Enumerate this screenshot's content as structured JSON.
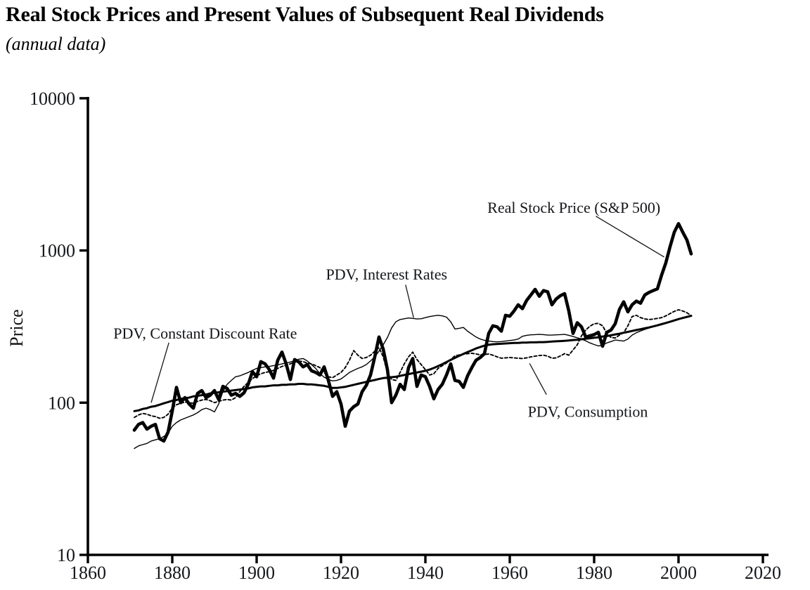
{
  "figure": {
    "title": "Real Stock Prices and Present Values of Subsequent Real Dividends",
    "subtitle": "(annual data)"
  },
  "chart_data": {
    "type": "line",
    "title": "Real Stock Prices and Present Values of Subsequent Real Dividends",
    "subtitle": "(annual data)",
    "xlabel": "",
    "ylabel": "Price",
    "y_scale": "log",
    "xlim": [
      1860,
      2020
    ],
    "ylim": [
      10,
      10000
    ],
    "x_ticks": [
      1860,
      1880,
      1900,
      1920,
      1940,
      1960,
      1980,
      2000,
      2020
    ],
    "y_ticks": [
      10,
      100,
      1000,
      10000
    ],
    "grid": false,
    "legend": "inline-annotations",
    "x_start_year": 1871,
    "series": [
      {
        "name": "Real Stock Price (S&P 500)",
        "values": [
          66,
          72,
          74,
          67,
          70,
          72,
          58,
          56,
          64,
          88,
          126,
          100,
          108,
          98,
          92,
          115,
          120,
          108,
          112,
          120,
          105,
          128,
          124,
          112,
          115,
          110,
          116,
          132,
          160,
          148,
          186,
          180,
          165,
          145,
          190,
          215,
          180,
          142,
          192,
          185,
          172,
          178,
          162,
          158,
          152,
          172,
          140,
          110,
          118,
          98,
          70,
          88,
          94,
          98,
          118,
          130,
          152,
          200,
          270,
          225,
          165,
          100,
          112,
          132,
          122,
          170,
          195,
          128,
          152,
          148,
          128,
          106,
          122,
          132,
          152,
          180,
          140,
          138,
          126,
          150,
          170,
          190,
          198,
          210,
          285,
          320,
          315,
          295,
          375,
          370,
          400,
          440,
          415,
          470,
          510,
          555,
          500,
          545,
          535,
          440,
          480,
          505,
          520,
          400,
          285,
          335,
          315,
          270,
          275,
          280,
          290,
          235,
          290,
          300,
          330,
          410,
          460,
          395,
          440,
          465,
          450,
          510,
          530,
          545,
          560,
          690,
          830,
          1060,
          1320,
          1500,
          1320,
          1170,
          950
        ]
      },
      {
        "name": "PDV, Constant Discount Rate",
        "values": [
          88,
          89,
          91,
          92,
          94,
          95,
          97,
          99,
          101,
          103,
          104,
          106,
          107,
          108,
          110,
          111,
          112,
          113,
          115,
          116,
          117,
          118,
          119,
          120,
          121,
          122,
          123,
          124,
          126,
          127,
          128,
          128,
          129,
          130,
          130,
          131,
          131,
          132,
          132,
          133,
          133,
          132,
          132,
          131,
          130,
          129,
          127,
          125,
          125,
          126,
          127,
          129,
          131,
          133,
          135,
          137,
          139,
          141,
          143,
          145,
          146,
          147,
          148,
          150,
          152,
          154,
          156,
          158,
          160,
          162,
          165,
          169,
          174,
          179,
          185,
          191,
          197,
          203,
          209,
          215,
          221,
          227,
          232,
          237,
          240,
          242,
          243,
          244,
          245,
          246,
          247,
          247,
          248,
          248,
          249,
          249,
          250,
          250,
          251,
          252,
          253,
          254,
          255,
          256,
          258,
          259,
          261,
          263,
          265,
          267,
          269,
          272,
          274,
          277,
          281,
          284,
          288,
          292,
          296,
          300,
          304,
          308,
          312,
          317,
          322,
          328,
          334,
          340,
          347,
          354,
          360,
          366,
          372
        ]
      },
      {
        "name": "PDV, Interest Rates",
        "values": [
          50,
          52,
          53,
          54,
          56,
          57,
          58,
          60,
          63,
          70,
          74,
          77,
          79,
          81,
          83,
          86,
          90,
          92,
          90,
          87,
          98,
          118,
          132,
          140,
          148,
          150,
          154,
          158,
          163,
          168,
          170,
          172,
          173,
          175,
          177,
          180,
          182,
          185,
          189,
          193,
          195,
          188,
          178,
          168,
          155,
          147,
          142,
          139,
          140,
          143,
          150,
          158,
          163,
          168,
          172,
          178,
          188,
          200,
          218,
          240,
          268,
          310,
          340,
          352,
          356,
          360,
          358,
          355,
          356,
          362,
          368,
          372,
          375,
          372,
          365,
          340,
          305,
          308,
          312,
          295,
          282,
          270,
          262,
          257,
          254,
          252,
          251,
          252,
          254,
          256,
          258,
          262,
          273,
          277,
          279,
          280,
          281,
          280,
          278,
          278,
          279,
          280,
          281,
          277,
          272,
          267,
          262,
          255,
          247,
          241,
          236,
          238,
          247,
          252,
          258,
          256,
          254,
          262,
          278,
          288,
          296,
          303,
          309,
          315,
          320,
          326,
          332,
          339,
          346,
          353,
          360,
          368,
          376
        ]
      },
      {
        "name": "PDV, Consumption",
        "values": [
          80,
          83,
          85,
          84,
          82,
          81,
          79,
          80,
          84,
          92,
          97,
          99,
          101,
          100,
          99,
          102,
          104,
          105,
          103,
          100,
          102,
          104,
          105,
          104,
          108,
          118,
          128,
          136,
          144,
          150,
          155,
          158,
          160,
          163,
          168,
          173,
          176,
          180,
          185,
          188,
          186,
          182,
          180,
          175,
          170,
          158,
          148,
          146,
          152,
          158,
          170,
          190,
          220,
          205,
          195,
          198,
          205,
          218,
          230,
          200,
          158,
          142,
          140,
          158,
          180,
          200,
          215,
          192,
          178,
          165,
          152,
          155,
          168,
          175,
          182,
          192,
          203,
          206,
          208,
          210,
          211,
          209,
          206,
          207,
          209,
          205,
          200,
          196,
          197,
          198,
          197,
          196,
          195,
          197,
          200,
          202,
          204,
          205,
          202,
          196,
          197,
          203,
          210,
          205,
          222,
          240,
          275,
          300,
          318,
          330,
          332,
          320,
          285,
          268,
          266,
          278,
          288,
          320,
          368,
          375,
          362,
          355,
          352,
          354,
          358,
          362,
          372,
          385,
          398,
          408,
          400,
          390,
          372
        ]
      }
    ],
    "annotations": [
      {
        "id": "real-stock-price",
        "text": "Real Stock Price (S&P 500)",
        "label_year": 1975.2,
        "label_value": 1925,
        "pointer": {
          "x1_year": 1980.4,
          "y1_value": 1680,
          "x2_year": 1996.6,
          "y2_value": 905
        }
      },
      {
        "id": "pdv-interest-rates",
        "text": "PDV, Interest Rates",
        "label_year": 1930.8,
        "label_value": 700,
        "pointer": {
          "x1_year": 1935.3,
          "y1_value": 595,
          "x2_year": 1937.2,
          "y2_value": 362
        }
      },
      {
        "id": "pdv-constant-discount-rate",
        "text": "PDV, Constant Discount Rate",
        "label_year": 1887.8,
        "label_value": 287,
        "pointer": {
          "x1_year": 1879.2,
          "y1_value": 248,
          "x2_year": 1875.0,
          "y2_value": 100
        }
      },
      {
        "id": "pdv-consumption",
        "text": "PDV, Consumption",
        "label_year": 1978.5,
        "label_value": 88,
        "pointer": {
          "x1_year": 1964.7,
          "y1_value": 181,
          "x2_year": 1968.7,
          "y2_value": 113
        }
      }
    ]
  }
}
